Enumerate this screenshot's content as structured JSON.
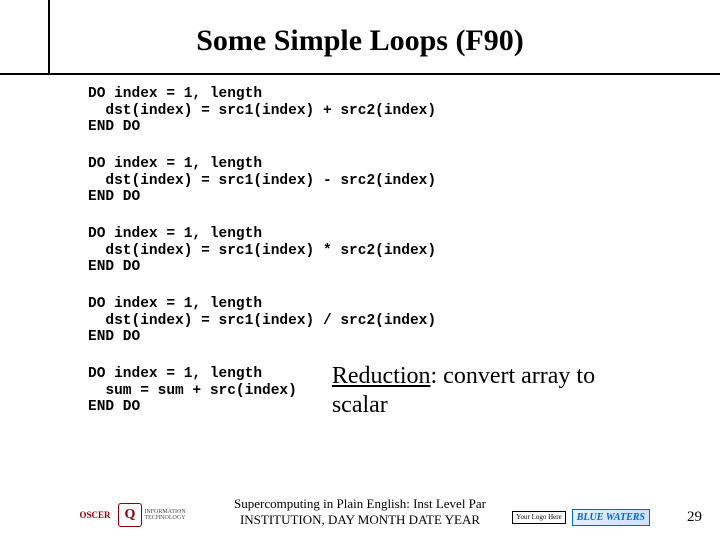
{
  "title": "Some Simple Loops (F90)",
  "blocks": {
    "b1": "DO index = 1, length\n  dst(index) = src1(index) + src2(index)\nEND DO",
    "b2": "DO index = 1, length\n  dst(index) = src1(index) - src2(index)\nEND DO",
    "b3": "DO index = 1, length\n  dst(index) = src1(index) * src2(index)\nEND DO",
    "b4": "DO index = 1, length\n  dst(index) = src1(index) / src2(index)\nEND DO",
    "b5": "DO index = 1, length\n  sum = sum + src(index)\nEND DO"
  },
  "reduction": {
    "label": "Reduction",
    "rest": ": convert array to scalar"
  },
  "footer": {
    "line1": "Supercomputing in Plain English: Inst Level Par",
    "line2": "INSTITUTION, DAY MONTH DATE YEAR"
  },
  "logos": {
    "oscer": "OSCER",
    "ou": "Q",
    "oit": "INFORMATION TECHNOLOGY",
    "your": "Your\nLogo\nHere",
    "bw": "BLUE WATERS"
  },
  "page": "29"
}
